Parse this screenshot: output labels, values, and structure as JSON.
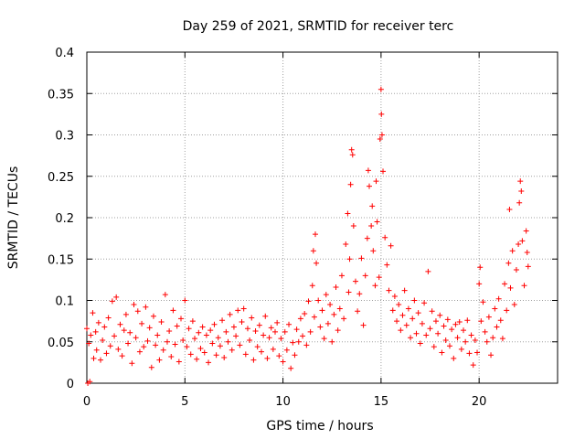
{
  "chart_data": {
    "type": "scatter",
    "title": "Day 259 of 2021, SRMTID for receiver terc",
    "xlabel": "GPS time / hours",
    "ylabel": "SRMTID / TECUs",
    "xlim": [
      0,
      24
    ],
    "ylim": [
      0,
      0.4
    ],
    "grid": true,
    "marker": "+",
    "color": "#ff0000",
    "x_ticks": [
      0,
      5,
      10,
      15,
      20
    ],
    "x_tick_labels": [
      "0",
      "5",
      "10",
      "15",
      "20"
    ],
    "y_ticks": [
      0,
      0.05,
      0.1,
      0.15,
      0.2,
      0.25,
      0.3,
      0.35,
      0.4
    ],
    "y_tick_labels": [
      "0",
      "0.05",
      "0.1",
      "0.15",
      "0.2",
      "0.25",
      "0.3",
      "0.35",
      "0.4"
    ],
    "series": [
      {
        "name": "SRMTID",
        "points": [
          [
            0.0,
            0.066
          ],
          [
            0.05,
            0.0
          ],
          [
            0.1,
            0.048
          ],
          [
            0.15,
            0.002
          ],
          [
            0.2,
            0.058
          ],
          [
            0.3,
            0.085
          ],
          [
            0.35,
            0.03
          ],
          [
            0.45,
            0.062
          ],
          [
            0.5,
            0.04
          ],
          [
            0.6,
            0.073
          ],
          [
            0.7,
            0.028
          ],
          [
            0.8,
            0.052
          ],
          [
            0.9,
            0.068
          ],
          [
            1.0,
            0.036
          ],
          [
            1.1,
            0.079
          ],
          [
            1.2,
            0.045
          ],
          [
            1.3,
            0.099
          ],
          [
            1.4,
            0.057
          ],
          [
            1.5,
            0.104
          ],
          [
            1.6,
            0.041
          ],
          [
            1.7,
            0.071
          ],
          [
            1.8,
            0.033
          ],
          [
            1.9,
            0.064
          ],
          [
            2.0,
            0.083
          ],
          [
            2.1,
            0.048
          ],
          [
            2.2,
            0.061
          ],
          [
            2.3,
            0.024
          ],
          [
            2.4,
            0.095
          ],
          [
            2.5,
            0.055
          ],
          [
            2.6,
            0.087
          ],
          [
            2.7,
            0.038
          ],
          [
            2.8,
            0.072
          ],
          [
            2.9,
            0.044
          ],
          [
            3.0,
            0.092
          ],
          [
            3.1,
            0.051
          ],
          [
            3.2,
            0.067
          ],
          [
            3.3,
            0.019
          ],
          [
            3.4,
            0.081
          ],
          [
            3.5,
            0.046
          ],
          [
            3.6,
            0.058
          ],
          [
            3.7,
            0.028
          ],
          [
            3.8,
            0.074
          ],
          [
            3.9,
            0.04
          ],
          [
            4.0,
            0.107
          ],
          [
            4.1,
            0.05
          ],
          [
            4.2,
            0.063
          ],
          [
            4.3,
            0.032
          ],
          [
            4.4,
            0.088
          ],
          [
            4.5,
            0.047
          ],
          [
            4.6,
            0.069
          ],
          [
            4.7,
            0.026
          ],
          [
            4.8,
            0.078
          ],
          [
            4.9,
            0.052
          ],
          [
            5.0,
            0.1
          ],
          [
            5.1,
            0.044
          ],
          [
            5.2,
            0.066
          ],
          [
            5.3,
            0.035
          ],
          [
            5.4,
            0.075
          ],
          [
            5.5,
            0.054
          ],
          [
            5.6,
            0.029
          ],
          [
            5.7,
            0.061
          ],
          [
            5.8,
            0.042
          ],
          [
            5.9,
            0.068
          ],
          [
            6.0,
            0.037
          ],
          [
            6.1,
            0.058
          ],
          [
            6.2,
            0.025
          ],
          [
            6.3,
            0.064
          ],
          [
            6.4,
            0.048
          ],
          [
            6.5,
            0.071
          ],
          [
            6.6,
            0.034
          ],
          [
            6.7,
            0.055
          ],
          [
            6.8,
            0.045
          ],
          [
            6.9,
            0.076
          ],
          [
            7.0,
            0.031
          ],
          [
            7.1,
            0.062
          ],
          [
            7.2,
            0.05
          ],
          [
            7.3,
            0.083
          ],
          [
            7.4,
            0.04
          ],
          [
            7.5,
            0.068
          ],
          [
            7.6,
            0.057
          ],
          [
            7.7,
            0.088
          ],
          [
            7.8,
            0.046
          ],
          [
            7.9,
            0.074
          ],
          [
            8.0,
            0.09
          ],
          [
            8.1,
            0.035
          ],
          [
            8.2,
            0.066
          ],
          [
            8.3,
            0.052
          ],
          [
            8.4,
            0.079
          ],
          [
            8.5,
            0.028
          ],
          [
            8.6,
            0.063
          ],
          [
            8.7,
            0.044
          ],
          [
            8.8,
            0.07
          ],
          [
            8.9,
            0.038
          ],
          [
            9.0,
            0.058
          ],
          [
            9.1,
            0.081
          ],
          [
            9.2,
            0.03
          ],
          [
            9.3,
            0.055
          ],
          [
            9.4,
            0.067
          ],
          [
            9.5,
            0.041
          ],
          [
            9.6,
            0.062
          ],
          [
            9.7,
            0.073
          ],
          [
            9.8,
            0.033
          ],
          [
            9.9,
            0.054
          ],
          [
            10.0,
            0.026
          ],
          [
            10.1,
            0.062
          ],
          [
            10.2,
            0.04
          ],
          [
            10.3,
            0.071
          ],
          [
            10.4,
            0.018
          ],
          [
            10.5,
            0.049
          ],
          [
            10.6,
            0.034
          ],
          [
            10.7,
            0.065
          ],
          [
            10.8,
            0.05
          ],
          [
            10.9,
            0.078
          ],
          [
            11.0,
            0.057
          ],
          [
            11.1,
            0.084
          ],
          [
            11.2,
            0.046
          ],
          [
            11.3,
            0.099
          ],
          [
            11.4,
            0.062
          ],
          [
            11.5,
            0.118
          ],
          [
            11.55,
            0.16
          ],
          [
            11.6,
            0.08
          ],
          [
            11.65,
            0.18
          ],
          [
            11.7,
            0.145
          ],
          [
            11.8,
            0.1
          ],
          [
            11.9,
            0.068
          ],
          [
            12.0,
            0.088
          ],
          [
            12.1,
            0.054
          ],
          [
            12.2,
            0.107
          ],
          [
            12.3,
            0.072
          ],
          [
            12.4,
            0.095
          ],
          [
            12.5,
            0.05
          ],
          [
            12.6,
            0.083
          ],
          [
            12.7,
            0.116
          ],
          [
            12.8,
            0.064
          ],
          [
            12.9,
            0.09
          ],
          [
            13.0,
            0.13
          ],
          [
            13.1,
            0.078
          ],
          [
            13.2,
            0.168
          ],
          [
            13.3,
            0.205
          ],
          [
            13.35,
            0.11
          ],
          [
            13.4,
            0.15
          ],
          [
            13.45,
            0.24
          ],
          [
            13.5,
            0.282
          ],
          [
            13.55,
            0.276
          ],
          [
            13.6,
            0.19
          ],
          [
            13.7,
            0.123
          ],
          [
            13.8,
            0.087
          ],
          [
            13.9,
            0.108
          ],
          [
            14.0,
            0.151
          ],
          [
            14.1,
            0.07
          ],
          [
            14.2,
            0.13
          ],
          [
            14.3,
            0.175
          ],
          [
            14.35,
            0.257
          ],
          [
            14.4,
            0.238
          ],
          [
            14.5,
            0.19
          ],
          [
            14.55,
            0.214
          ],
          [
            14.6,
            0.16
          ],
          [
            14.7,
            0.118
          ],
          [
            14.75,
            0.244
          ],
          [
            14.8,
            0.195
          ],
          [
            14.9,
            0.128
          ],
          [
            14.95,
            0.295
          ],
          [
            15.0,
            0.355
          ],
          [
            15.02,
            0.325
          ],
          [
            15.05,
            0.3
          ],
          [
            15.1,
            0.256
          ],
          [
            15.2,
            0.176
          ],
          [
            15.3,
            0.143
          ],
          [
            15.4,
            0.112
          ],
          [
            15.5,
            0.166
          ],
          [
            15.6,
            0.088
          ],
          [
            15.7,
            0.105
          ],
          [
            15.8,
            0.075
          ],
          [
            15.9,
            0.095
          ],
          [
            16.0,
            0.064
          ],
          [
            16.1,
            0.082
          ],
          [
            16.2,
            0.112
          ],
          [
            16.3,
            0.07
          ],
          [
            16.4,
            0.09
          ],
          [
            16.5,
            0.055
          ],
          [
            16.6,
            0.078
          ],
          [
            16.7,
            0.1
          ],
          [
            16.8,
            0.06
          ],
          [
            16.9,
            0.085
          ],
          [
            17.0,
            0.048
          ],
          [
            17.1,
            0.072
          ],
          [
            17.2,
            0.097
          ],
          [
            17.3,
            0.058
          ],
          [
            17.4,
            0.135
          ],
          [
            17.5,
            0.066
          ],
          [
            17.6,
            0.087
          ],
          [
            17.7,
            0.044
          ],
          [
            17.8,
            0.075
          ],
          [
            17.9,
            0.06
          ],
          [
            18.0,
            0.082
          ],
          [
            18.1,
            0.037
          ],
          [
            18.2,
            0.069
          ],
          [
            18.3,
            0.052
          ],
          [
            18.4,
            0.077
          ],
          [
            18.5,
            0.045
          ],
          [
            18.6,
            0.065
          ],
          [
            18.7,
            0.03
          ],
          [
            18.8,
            0.071
          ],
          [
            18.9,
            0.055
          ],
          [
            19.0,
            0.074
          ],
          [
            19.1,
            0.041
          ],
          [
            19.2,
            0.064
          ],
          [
            19.3,
            0.05
          ],
          [
            19.4,
            0.076
          ],
          [
            19.5,
            0.036
          ],
          [
            19.6,
            0.058
          ],
          [
            19.7,
            0.022
          ],
          [
            19.8,
            0.052
          ],
          [
            19.9,
            0.037
          ],
          [
            20.0,
            0.12
          ],
          [
            20.05,
            0.14
          ],
          [
            20.1,
            0.075
          ],
          [
            20.2,
            0.098
          ],
          [
            20.3,
            0.062
          ],
          [
            20.4,
            0.05
          ],
          [
            20.5,
            0.08
          ],
          [
            20.6,
            0.034
          ],
          [
            20.7,
            0.055
          ],
          [
            20.8,
            0.09
          ],
          [
            20.9,
            0.068
          ],
          [
            21.0,
            0.102
          ],
          [
            21.1,
            0.076
          ],
          [
            21.2,
            0.054
          ],
          [
            21.3,
            0.12
          ],
          [
            21.4,
            0.088
          ],
          [
            21.5,
            0.145
          ],
          [
            21.55,
            0.21
          ],
          [
            21.6,
            0.115
          ],
          [
            21.7,
            0.16
          ],
          [
            21.8,
            0.095
          ],
          [
            21.9,
            0.137
          ],
          [
            22.0,
            0.168
          ],
          [
            22.05,
            0.218
          ],
          [
            22.1,
            0.244
          ],
          [
            22.15,
            0.232
          ],
          [
            22.2,
            0.172
          ],
          [
            22.3,
            0.118
          ],
          [
            22.4,
            0.184
          ],
          [
            22.45,
            0.158
          ],
          [
            22.5,
            0.141
          ]
        ]
      }
    ]
  }
}
